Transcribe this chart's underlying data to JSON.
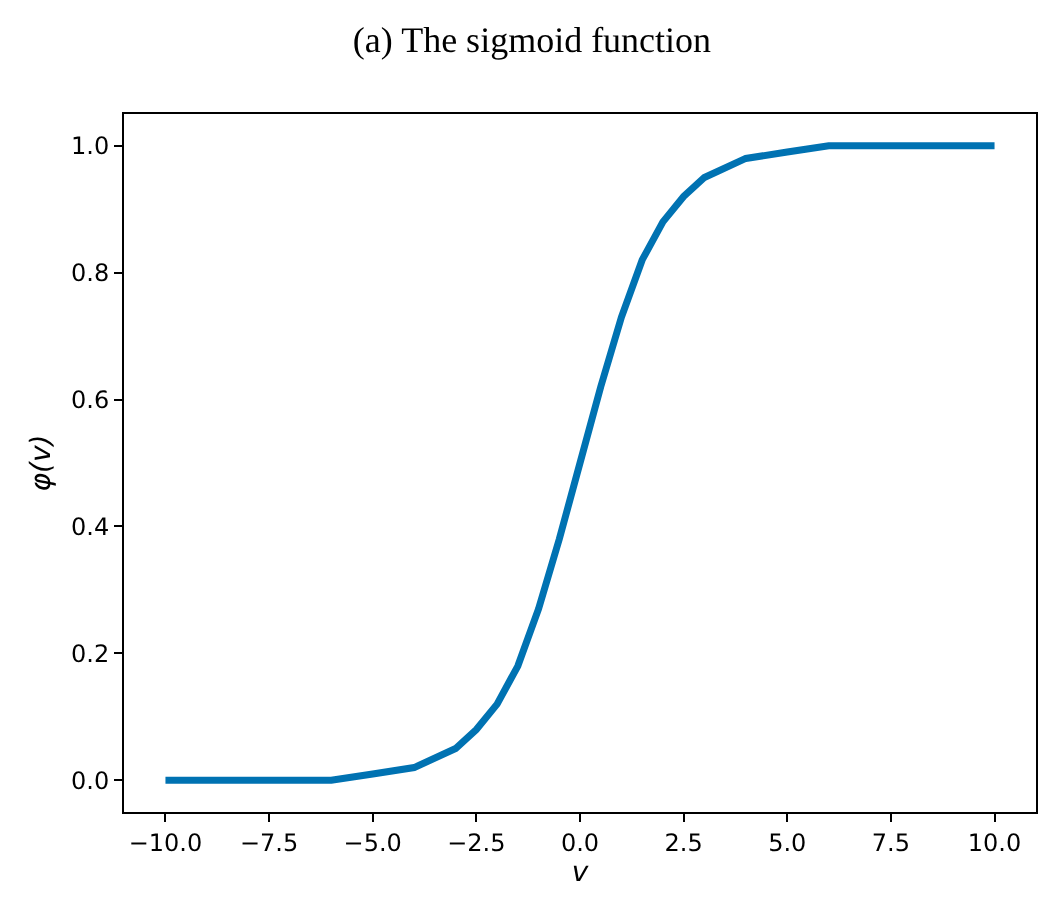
{
  "chart_data": {
    "type": "line",
    "title": "(a) The sigmoid function",
    "xlabel": "v",
    "ylabel": "φ(v)",
    "x": [
      -10,
      -8,
      -6,
      -5,
      -4,
      -3,
      -2.5,
      -2,
      -1.5,
      -1,
      -0.5,
      0,
      0.5,
      1,
      1.5,
      2,
      2.5,
      3,
      4,
      5,
      6,
      8,
      10
    ],
    "series": [
      {
        "color": "#0072b2",
        "values": [
          0.0,
          0.0,
          0.0,
          0.01,
          0.02,
          0.05,
          0.08,
          0.12,
          0.18,
          0.27,
          0.38,
          0.5,
          0.62,
          0.73,
          0.82,
          0.88,
          0.92,
          0.95,
          0.98,
          0.99,
          1.0,
          1.0,
          1.0
        ]
      }
    ],
    "xlim": [
      -11,
      11
    ],
    "ylim": [
      -0.05,
      1.05
    ],
    "xticks": [
      {
        "value": -10,
        "label": "−10.0"
      },
      {
        "value": -7.5,
        "label": "−7.5"
      },
      {
        "value": -5,
        "label": "−5.0"
      },
      {
        "value": -2.5,
        "label": "−2.5"
      },
      {
        "value": 0,
        "label": "0.0"
      },
      {
        "value": 2.5,
        "label": "2.5"
      },
      {
        "value": 5,
        "label": "5.0"
      },
      {
        "value": 7.5,
        "label": "7.5"
      },
      {
        "value": 10,
        "label": "10.0"
      }
    ],
    "yticks": [
      {
        "value": 0,
        "label": "0.0"
      },
      {
        "value": 0.2,
        "label": "0.2"
      },
      {
        "value": 0.4,
        "label": "0.4"
      },
      {
        "value": 0.6,
        "label": "0.6"
      },
      {
        "value": 0.8,
        "label": "0.8"
      },
      {
        "value": 1,
        "label": "1.0"
      }
    ],
    "marker": "none",
    "line_style": "solid"
  }
}
